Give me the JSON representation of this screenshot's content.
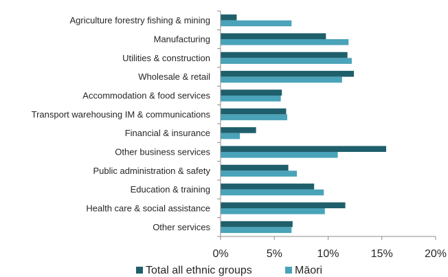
{
  "chart_data": {
    "type": "bar",
    "orientation": "horizontal",
    "categories": [
      "Agriculture forestry fishing & mining",
      "Manufacturing",
      "Utilities & construction",
      "Wholesale & retail",
      "Accommodation & food services",
      "Transport warehousing IM & communications",
      "Financial & insurance",
      "Other business services",
      "Public administration & safety",
      "Education & training",
      "Health care & social assistance",
      "Other services"
    ],
    "series": [
      {
        "name": "Total all ethnic groups",
        "color": "#1f5f6b",
        "values": [
          1.5,
          9.8,
          11.8,
          12.4,
          5.7,
          6.1,
          3.3,
          15.4,
          6.3,
          8.7,
          11.6,
          6.7
        ]
      },
      {
        "name": "Māori",
        "color": "#4aa3b8",
        "values": [
          6.6,
          11.9,
          12.2,
          11.3,
          5.6,
          6.2,
          1.8,
          10.9,
          7.1,
          9.6,
          9.7,
          6.6
        ]
      }
    ],
    "xlim": [
      0,
      20
    ],
    "xticks": [
      "0%",
      "5%",
      "10%",
      "15%",
      "20%"
    ],
    "title": "",
    "xlabel": "",
    "ylabel": "",
    "grid": false,
    "legend_position": "bottom"
  }
}
